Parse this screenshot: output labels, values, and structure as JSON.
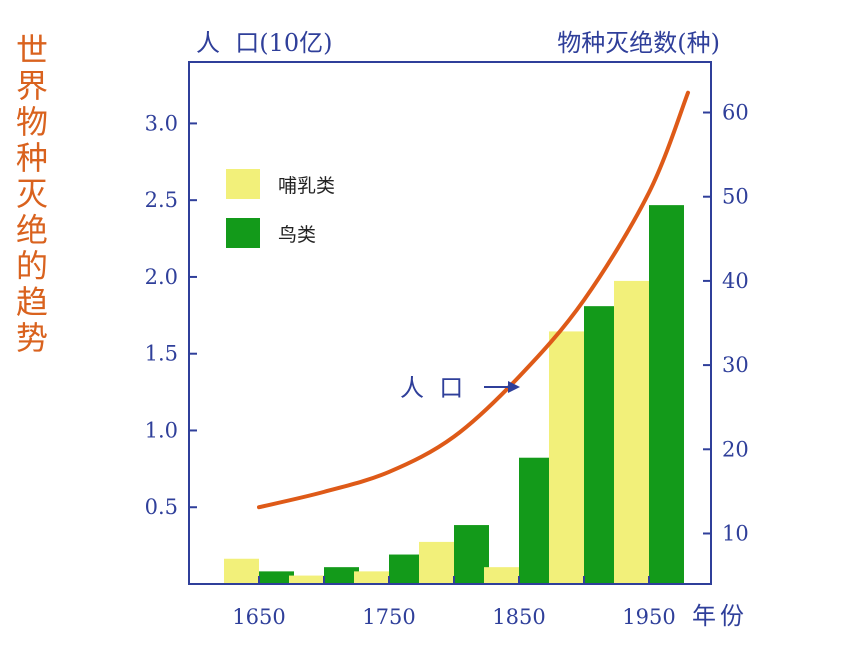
{
  "side_title": [
    "世",
    "界",
    "物",
    "种",
    "灭",
    "绝",
    "的",
    "趋",
    "势"
  ],
  "colors": {
    "mammals": "#f2f07a",
    "birds": "#139a1a",
    "population": "#de5a18",
    "axis": "#2f3f9a",
    "title": "#d9621e"
  },
  "chart_data": {
    "type": "bar",
    "title": "世界物种灭绝的趋势",
    "xlabel": "年份",
    "ylabel_left": "人  口(10亿)",
    "ylabel_right": "物种灭绝数(种)",
    "x_ticks": [
      "1650",
      "1750",
      "1850",
      "1950"
    ],
    "categories": [
      1650,
      1700,
      1750,
      1800,
      1850,
      1900,
      1950
    ],
    "y_left_ticks": [
      "0.5",
      "1.0",
      "1.5",
      "2.0",
      "2.5",
      "3.0"
    ],
    "y_left_range": [
      0,
      3.4
    ],
    "y_right_ticks": [
      "10",
      "20",
      "30",
      "40",
      "50",
      "60"
    ],
    "y_right_range": [
      4,
      66
    ],
    "series": [
      {
        "name": "哺乳类",
        "values": [
          7,
          5,
          5.5,
          9,
          6,
          34,
          40
        ]
      },
      {
        "name": "鸟类",
        "values": [
          5.5,
          6,
          7.5,
          11,
          19,
          37,
          49
        ]
      }
    ],
    "population_line": {
      "label": "人  口",
      "x": [
        1650,
        1700,
        1750,
        1800,
        1850,
        1900,
        1950,
        1980
      ],
      "y": [
        0.5,
        0.6,
        0.73,
        0.96,
        1.35,
        1.85,
        2.55,
        3.2
      ]
    }
  }
}
